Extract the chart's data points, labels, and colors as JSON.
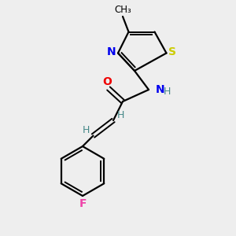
{
  "background_color": "#eeeeee",
  "bond_color": "#000000",
  "atom_colors": {
    "N": "#0000ee",
    "O": "#ee0000",
    "S": "#cccc00",
    "F": "#ee44aa",
    "H": "#448888",
    "C": "#000000",
    "CH3": "#000000"
  },
  "figsize": [
    3.0,
    3.0
  ],
  "dpi": 100
}
